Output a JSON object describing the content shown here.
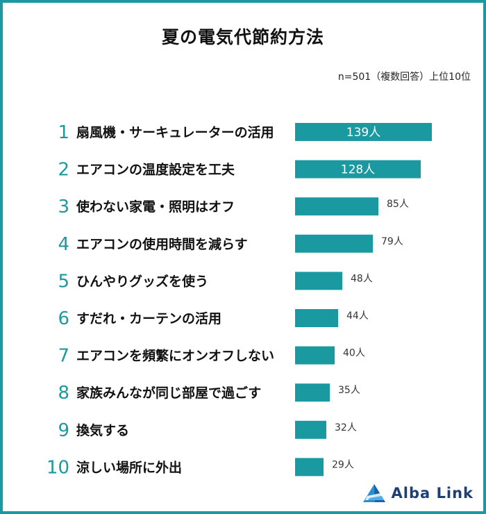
{
  "title": "夏の電気代節約方法",
  "sample_note": "n=501（複数回答）上位10位",
  "logo": {
    "text": "Alba Link",
    "icon": "triangle-logo-icon"
  },
  "colors": {
    "bar": "#1a9aa0",
    "border": "#1a9aa0",
    "rank": "#1a9aa0",
    "value_inside": "#ffffff",
    "value_outside": "#333333"
  },
  "chart_data": {
    "type": "bar",
    "orientation": "horizontal",
    "title": "夏の電気代節約方法",
    "ranks": [
      "1",
      "2",
      "3",
      "4",
      "5",
      "6",
      "7",
      "8",
      "9",
      "10"
    ],
    "categories": [
      "扇風機・サーキュレーターの活用",
      "エアコンの温度設定を工夫",
      "使わない家電・照明はオフ",
      "エアコンの使用時間を減らす",
      "ひんやりグッズを使う",
      "すだれ・カーテンの活用",
      "エアコンを頻繁にオンオフしない",
      "家族みんなが同じ部屋で過ごす",
      "換気する",
      "涼しい場所に外出"
    ],
    "values": [
      139,
      128,
      85,
      79,
      48,
      44,
      40,
      35,
      32,
      29
    ],
    "value_labels": [
      "139人",
      "128人",
      "85人",
      "79人",
      "48人",
      "44人",
      "40人",
      "35人",
      "32人",
      "29人"
    ],
    "unit": "人",
    "xlim": [
      0,
      139
    ],
    "xlabel": "",
    "ylabel": ""
  }
}
